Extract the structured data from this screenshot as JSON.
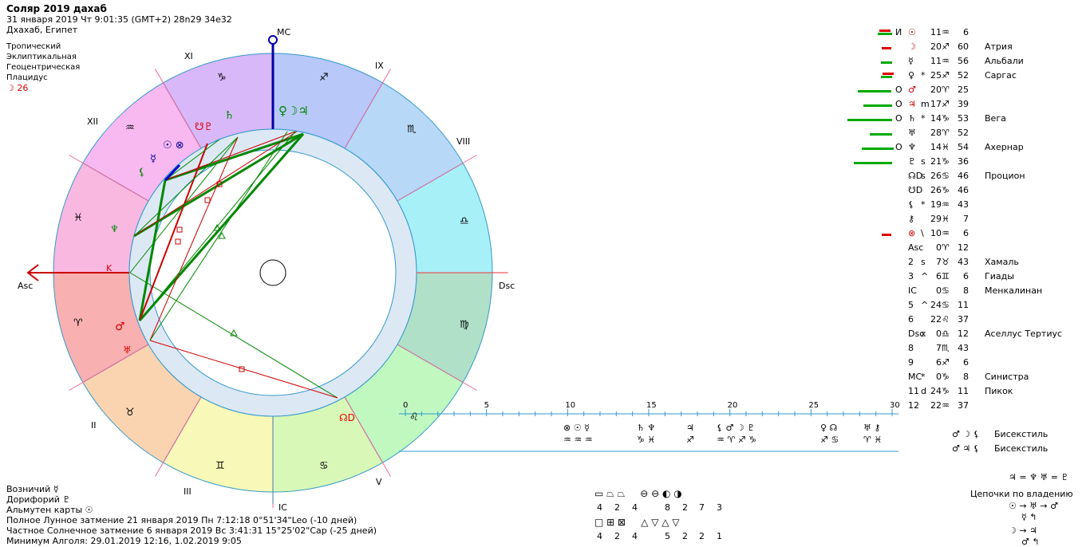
{
  "header": {
    "title": "Соляр 2019 дахаб",
    "datetime": "31 января 2019  Чт   9:01:35 (GMT+2) 28n29  34e32",
    "place": "Дхахаб, Египет",
    "settings": [
      "Тропический",
      "Эклиптикальная",
      "Геоцентрическая",
      "Плацидус"
    ],
    "moon_line": "☽  26"
  },
  "chart_labels": {
    "mc": "MC",
    "ic": "IC",
    "asc": "Asc",
    "dsc": "Dsc",
    "houses": [
      "XI",
      "XII",
      "IX",
      "VIII",
      "II",
      "III",
      "V"
    ]
  },
  "planet_table": [
    {
      "prefix": "И",
      "glyph": "☉",
      "retro": "",
      "deg": "11",
      "sign": "♒",
      "min": "6",
      "star": ""
    },
    {
      "prefix": "",
      "glyph": "☽",
      "retro": "",
      "deg": "20",
      "sign": "♐",
      "min": "60",
      "star": "Атрия"
    },
    {
      "prefix": "",
      "glyph": "☿",
      "retro": "",
      "deg": "11",
      "sign": "♒",
      "min": "56",
      "star": "Альбали"
    },
    {
      "prefix": "",
      "glyph": "♀",
      "retro": "*",
      "deg": "25",
      "sign": "♐",
      "min": "52",
      "star": "Саргас"
    },
    {
      "prefix": "О",
      "glyph": "♂",
      "retro": "",
      "deg": "20",
      "sign": "♈",
      "min": "25",
      "star": ""
    },
    {
      "prefix": "О",
      "glyph": "♃",
      "retro": "m",
      "deg": "17",
      "sign": "♐",
      "min": "39",
      "star": ""
    },
    {
      "prefix": "О",
      "glyph": "♄",
      "retro": "*",
      "deg": "14",
      "sign": "♑",
      "min": "53",
      "star": "Вега"
    },
    {
      "prefix": "",
      "glyph": "♅",
      "retro": "",
      "deg": "28",
      "sign": "♈",
      "min": "52",
      "star": ""
    },
    {
      "prefix": "О",
      "glyph": "♆",
      "retro": "",
      "deg": "14",
      "sign": "♓",
      "min": "54",
      "star": "Ахернар"
    },
    {
      "prefix": "",
      "glyph": "♇",
      "retro": "s",
      "deg": "21",
      "sign": "♑",
      "min": "36",
      "star": ""
    },
    {
      "prefix": "",
      "glyph": "☊D",
      "retro": "s",
      "deg": "26",
      "sign": "♋",
      "min": "46",
      "star": "Процион"
    },
    {
      "prefix": "",
      "glyph": "☋D",
      "retro": "",
      "deg": "26",
      "sign": "♑",
      "min": "46",
      "star": ""
    },
    {
      "prefix": "",
      "glyph": "⚸",
      "retro": "*",
      "deg": "19",
      "sign": "♒",
      "min": "43",
      "star": ""
    },
    {
      "prefix": "",
      "glyph": "⚷",
      "retro": "",
      "deg": "29",
      "sign": "♓",
      "min": "7",
      "star": ""
    },
    {
      "prefix": "",
      "glyph": "⊗",
      "retro": "\\",
      "deg": "10",
      "sign": "♒",
      "min": "6",
      "star": ""
    },
    {
      "prefix": "",
      "glyph": "Asc",
      "retro": "",
      "deg": "0",
      "sign": "♈",
      "min": "12",
      "star": ""
    },
    {
      "prefix": "",
      "glyph": "2",
      "retro": "s",
      "deg": "7",
      "sign": "♉",
      "min": "43",
      "star": "Хамаль"
    },
    {
      "prefix": "",
      "glyph": "3",
      "retro": "^",
      "deg": "6",
      "sign": "♊",
      "min": "6",
      "star": "Гиады"
    },
    {
      "prefix": "",
      "glyph": "IC",
      "retro": "",
      "deg": "0",
      "sign": "♋",
      "min": "8",
      "star": "Менкалинан"
    },
    {
      "prefix": "",
      "glyph": "5",
      "retro": "^",
      "deg": "24",
      "sign": "♋",
      "min": "11",
      "star": ""
    },
    {
      "prefix": "",
      "glyph": "6",
      "retro": "",
      "deg": "22",
      "sign": "♌",
      "min": "37",
      "star": ""
    },
    {
      "prefix": "",
      "glyph": "Dsc",
      "retro": "x",
      "deg": "0",
      "sign": "♎",
      "min": "12",
      "star": "Аселлус Тертиус"
    },
    {
      "prefix": "",
      "glyph": "8",
      "retro": "",
      "deg": "7",
      "sign": "♏",
      "min": "43",
      "star": ""
    },
    {
      "prefix": "",
      "glyph": "9",
      "retro": "",
      "deg": "6",
      "sign": "♐",
      "min": "6",
      "star": ""
    },
    {
      "prefix": "",
      "glyph": "MC",
      "retro": "*",
      "deg": "0",
      "sign": "♑",
      "min": "8",
      "star": "Синистра"
    },
    {
      "prefix": "",
      "glyph": "11",
      "retro": "d",
      "deg": "24",
      "sign": "♑",
      "min": "11",
      "star": "Пикок"
    },
    {
      "prefix": "",
      "glyph": "12",
      "retro": "",
      "deg": "22",
      "sign": "♒",
      "min": "37",
      "star": ""
    }
  ],
  "timeline": {
    "ticks": [
      "0",
      "5",
      "10",
      "15",
      "20",
      "25",
      "30"
    ],
    "events_top": [
      "⊗ ☉ ☿",
      "♄ ♆",
      "♃",
      "⚸ ♂ ☽ ♇",
      "♀ ☊",
      "♅ ⚷"
    ],
    "events_bottom": [
      "♒ ♒ ♒",
      "♑ ♓",
      "♐",
      "♒ ♈ ♐ ♑",
      "♐ ♋",
      "♈ ♓"
    ]
  },
  "bisextiles": [
    {
      "glyphs": "♂ ☽ ⚸",
      "label": "Бисекстиль"
    },
    {
      "glyphs": "♂ ♃ ⚸",
      "label": "Бисекстиль"
    }
  ],
  "rulership": {
    "top": "♃ = ♆  ♅ = ♇",
    "title": "Цепочки по владению",
    "lines": [
      "☉ → ♅ → ♂",
      "☿ ↰",
      "☽ → ♃",
      "♂ ↰"
    ]
  },
  "shapes": {
    "row1_counts": [
      "4",
      "2",
      "4",
      "8",
      "2",
      "7",
      "3"
    ],
    "row2_counts": [
      "4",
      "2",
      "4",
      "5",
      "2",
      "2",
      "1"
    ]
  },
  "footer": {
    "lines": [
      "Возничий  ☿",
      "Дорифорий  ♇",
      "Альмутен карты  ☉",
      "Полное Лунное затмение 21 января 2019 Пн  7:12:18  0°51'34\"Leo (-10 дней)",
      "Частное Солнечное затмение 6 января 2019 Вс  3:41:31 15°25'02\"Cap (-25 дней)",
      "Минимум Алголя: 29.01.2019 12:16,  1.02.2019  9:05"
    ]
  }
}
